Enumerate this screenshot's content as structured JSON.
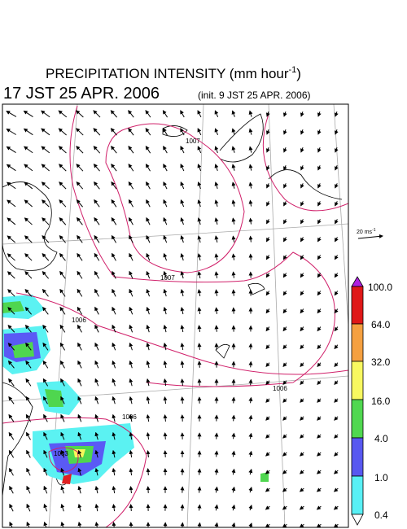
{
  "header": {
    "title": "PRECIPITATION INTENSITY (mm hour",
    "title_exponent": "-1",
    "title_close": ")",
    "valid_time": "17 JST 25 APR. 2006",
    "init_time": "(init. 9 JST 25 APR. 2006)"
  },
  "wind_scale": {
    "label": "20 ms",
    "exponent": "-1"
  },
  "colorbar": {
    "labels": [
      "100.0",
      "64.0",
      "32.0",
      "16.0",
      "4.0",
      "1.0",
      "0.4"
    ]
  },
  "contours": {
    "labels": [
      "1007",
      "1007",
      "1006",
      "1006",
      "1006",
      "1003"
    ]
  }
}
